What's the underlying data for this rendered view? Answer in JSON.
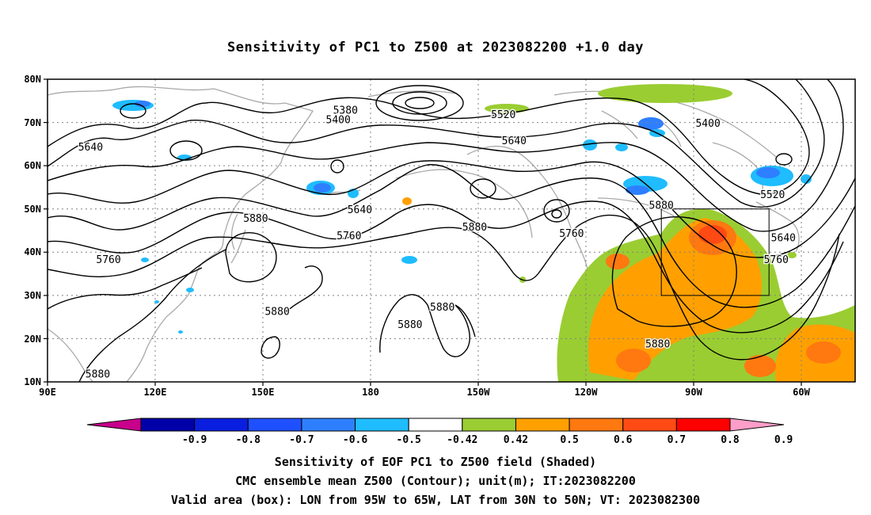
{
  "title": "Sensitivity of PC1 to Z500 at 2023082200 +1.0 day",
  "map": {
    "lat_labels": [
      "80N",
      "70N",
      "60N",
      "50N",
      "40N",
      "30N",
      "20N",
      "10N"
    ],
    "lon_labels": [
      "90E",
      "120E",
      "150E",
      "180",
      "150W",
      "120W",
      "90W",
      "60W"
    ],
    "contour_labels": [
      {
        "text": "5380",
        "lon": 173,
        "lat": 72
      },
      {
        "text": "5400",
        "lon": 171,
        "lat": 69.8
      },
      {
        "text": "5520",
        "lon": -143,
        "lat": 71
      },
      {
        "text": "5400",
        "lon": -86,
        "lat": 69
      },
      {
        "text": "5640",
        "lon": 102,
        "lat": 63.5
      },
      {
        "text": "5640",
        "lon": -140,
        "lat": 65
      },
      {
        "text": "5520",
        "lon": -68,
        "lat": 52.5
      },
      {
        "text": "5640",
        "lon": 177,
        "lat": 49
      },
      {
        "text": "5880",
        "lon": 148,
        "lat": 47
      },
      {
        "text": "5880",
        "lon": -99,
        "lat": 50
      },
      {
        "text": "5640",
        "lon": -65,
        "lat": 42.5
      },
      {
        "text": "5760",
        "lon": 107,
        "lat": 37.5
      },
      {
        "text": "5760",
        "lon": 174,
        "lat": 43
      },
      {
        "text": "5880",
        "lon": -151,
        "lat": 45
      },
      {
        "text": "5760",
        "lon": -124,
        "lat": 43.5
      },
      {
        "text": "5760",
        "lon": -67,
        "lat": 37.5
      },
      {
        "text": "5880",
        "lon": 154,
        "lat": 25.5
      },
      {
        "text": "5880",
        "lon": -160,
        "lat": 26.5
      },
      {
        "text": "5880",
        "lon": -169,
        "lat": 22.5
      },
      {
        "text": "5880",
        "lon": -100,
        "lat": 18
      },
      {
        "text": "5880",
        "lon": 104,
        "lat": 11
      }
    ],
    "valid_box": {
      "lon_w": -95,
      "lon_e": -65,
      "lat_s": 30,
      "lat_n": 50
    }
  },
  "colorbar": {
    "labels": [
      "-0.9",
      "-0.8",
      "-0.7",
      "-0.6",
      "-0.5",
      "-0.42",
      "0.42",
      "0.5",
      "0.6",
      "0.7",
      "0.8",
      "0.9"
    ],
    "colors": [
      "#c8008c",
      "#0000a8",
      "#0a1ee0",
      "#1f50ff",
      "#2e7fff",
      "#1fbcff",
      "#ffffff",
      "#9acd32",
      "#ffa000",
      "#ff7810",
      "#ff4a14",
      "#ff0000",
      "#ff9ec8"
    ]
  },
  "caption": {
    "line1": "Sensitivity of EOF PC1 to Z500 field (Shaded)",
    "line2": "CMC ensemble mean Z500 (Contour); unit(m); IT:2023082200",
    "line3": "Valid area (box): LON from 95W to 65W, LAT from 30N to 50N; VT: 2023082300"
  }
}
